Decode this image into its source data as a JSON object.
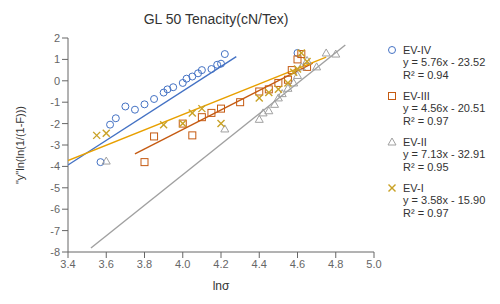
{
  "chart_data": {
    "type": "scatter",
    "title": "GL 50 Tenacity(cN/Tex)",
    "xlabel": "lnσ",
    "ylabel": "\"y\"ln(ln(1/(1-F)))",
    "xlim": [
      3.4,
      5.0
    ],
    "ylim": [
      -8,
      2
    ],
    "xticks": [
      3.4,
      3.6,
      3.8,
      {
        "value": 4.0,
        "label": "4.0"
      },
      4.2,
      4.4,
      4.6,
      4.8,
      {
        "value": 5.0,
        "label": "5.0"
      }
    ],
    "yticks": [
      -8,
      -7,
      -6,
      -5,
      -4,
      -3,
      -2,
      -1,
      0,
      1,
      2
    ],
    "grid": false,
    "series": [
      {
        "name": "EV-IV",
        "color": "#4472C4",
        "marker": "circle",
        "x": [
          3.57,
          3.62,
          3.65,
          3.7,
          3.75,
          3.8,
          3.85,
          3.9,
          3.92,
          3.95,
          4.0,
          4.02,
          4.05,
          4.08,
          4.1,
          4.15,
          4.18,
          4.2,
          4.22,
          4.6
        ],
        "values": [
          -3.8,
          -2.05,
          -1.75,
          -1.2,
          -1.35,
          -1.1,
          -0.85,
          -0.55,
          -0.4,
          -0.3,
          -0.1,
          0.1,
          0.2,
          0.35,
          0.5,
          0.55,
          0.75,
          0.8,
          1.25,
          1.3
        ],
        "annotations": [
          "y = 5.76x - 23.52",
          "R² = 0.94"
        ],
        "fit": {
          "color": "#4472C4",
          "x": [
            3.4,
            4.28
          ],
          "values": [
            -3.936,
            1.1328
          ]
        }
      },
      {
        "name": "EV-III",
        "color": "#C55A11",
        "marker": "square",
        "x": [
          3.8,
          3.85,
          4.0,
          4.05,
          4.1,
          4.15,
          4.2,
          4.3,
          4.4,
          4.45,
          4.5,
          4.55,
          4.57,
          4.6,
          4.62,
          4.65
        ],
        "values": [
          -3.8,
          -2.6,
          -2.0,
          -2.55,
          -1.7,
          -1.5,
          -1.3,
          -1.0,
          -0.5,
          -0.4,
          -0.1,
          0.05,
          0.5,
          1.0,
          1.25,
          0.65
        ],
        "annotations": [
          "y = 4.56x - 20.51",
          "R² = 0.97"
        ],
        "fit": {
          "color": "#C55A11",
          "x": [
            3.75,
            4.68
          ],
          "values": [
            -3.41,
            0.8308
          ]
        }
      },
      {
        "name": "EV-II",
        "color": "#A0A0A0",
        "marker": "triangle",
        "x": [
          3.6,
          4.22,
          4.4,
          4.42,
          4.45,
          4.48,
          4.5,
          4.52,
          4.55,
          4.58,
          4.6,
          4.62,
          4.65,
          4.7,
          4.75,
          4.8
        ],
        "values": [
          -3.75,
          -2.25,
          -1.8,
          -1.5,
          -1.4,
          -1.1,
          -0.8,
          -0.6,
          -0.35,
          -0.1,
          0.25,
          0.65,
          0.95,
          0.65,
          1.3,
          1.25
        ],
        "annotations": [
          "y = 7.13x - 32.91",
          "R² = 0.95"
        ],
        "fit": {
          "color": "#A0A0A0",
          "x": [
            3.52,
            4.85
          ],
          "values": [
            -7.8124,
            1.6705
          ]
        }
      },
      {
        "name": "EV-I",
        "color": "#C9A227",
        "marker": "x",
        "x": [
          3.55,
          3.6,
          3.9,
          4.0,
          4.05,
          4.1,
          4.2,
          4.4,
          4.45,
          4.5,
          4.55,
          4.58,
          4.6,
          4.62,
          4.65
        ],
        "values": [
          -2.55,
          -2.45,
          -2.05,
          -2.0,
          -1.5,
          -1.3,
          -2.0,
          -0.8,
          -0.55,
          -0.4,
          -0.1,
          0.4,
          0.55,
          1.3,
          0.9
        ],
        "annotations": [
          "y = 3.58x - 15.90",
          "R² = 0.97"
        ],
        "fit": {
          "color": "#E8A000",
          "x": [
            3.4,
            4.75
          ],
          "values": [
            -3.728,
            1.105
          ]
        }
      }
    ]
  }
}
